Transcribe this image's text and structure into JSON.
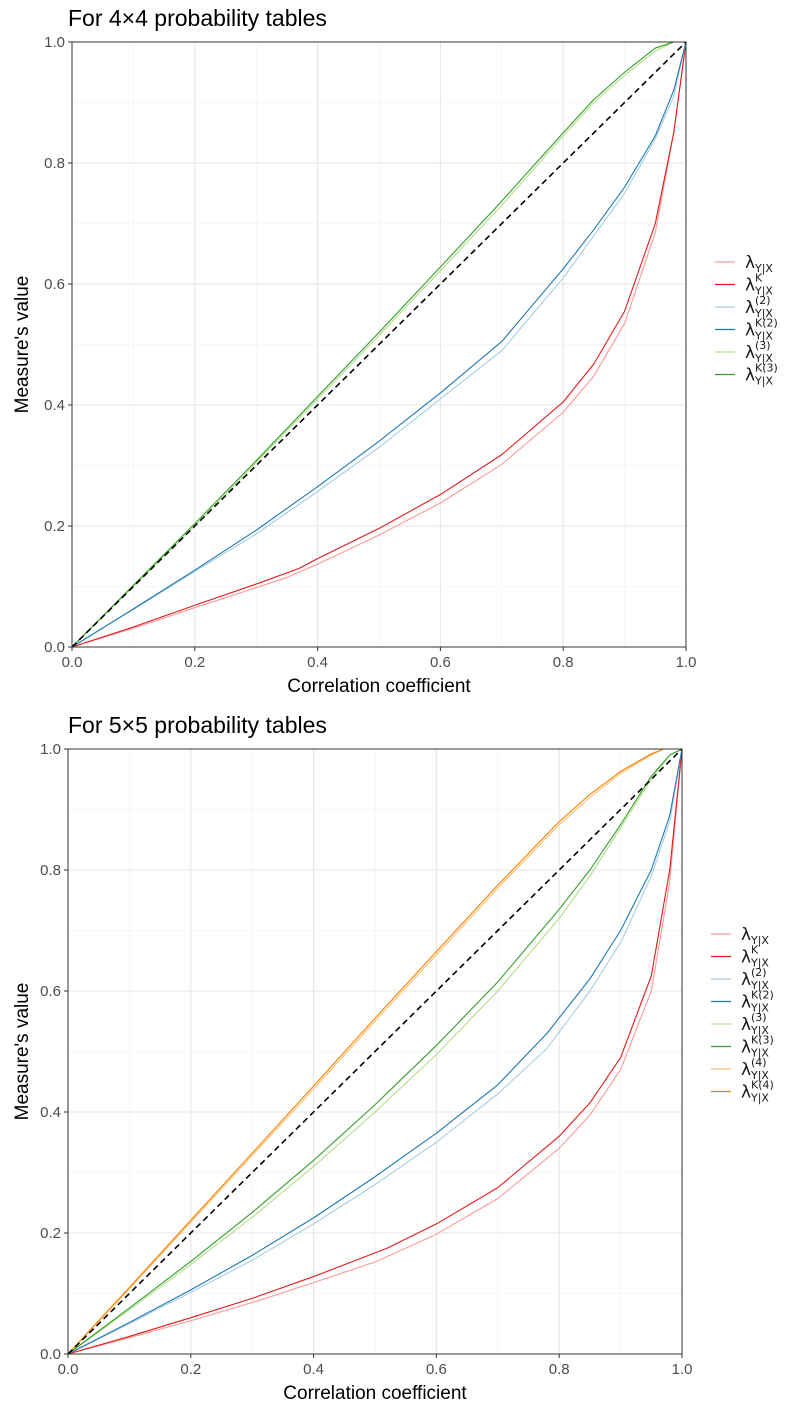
{
  "chart_data": [
    {
      "type": "line",
      "title": "For 4×4 probability tables",
      "xlabel": "Correlation coefficient",
      "ylabel": "Measure's value",
      "xlim": [
        0,
        1
      ],
      "ylim": [
        0,
        1
      ],
      "x_ticks": [
        "0.0",
        "0.2",
        "0.4",
        "0.6",
        "0.8",
        "1.0"
      ],
      "y_ticks": [
        "0.0",
        "0.2",
        "0.4",
        "0.6",
        "0.8",
        "1.0"
      ],
      "grid": true,
      "legend_position": "right",
      "reference_line": {
        "style": "dashed",
        "color": "#000000",
        "points": [
          [
            0,
            0
          ],
          [
            1,
            1
          ]
        ]
      },
      "series": [
        {
          "base": "λ",
          "sub": "Y|X",
          "sup": "",
          "color": "#fb9a99",
          "points": [
            [
              0,
              0
            ],
            [
              0.1,
              0.031
            ],
            [
              0.2,
              0.065
            ],
            [
              0.3,
              0.098
            ],
            [
              0.35,
              0.115
            ],
            [
              0.4,
              0.137
            ],
            [
              0.5,
              0.185
            ],
            [
              0.6,
              0.238
            ],
            [
              0.7,
              0.302
            ],
            [
              0.8,
              0.388
            ],
            [
              0.85,
              0.448
            ],
            [
              0.9,
              0.535
            ],
            [
              0.95,
              0.685
            ],
            [
              0.98,
              0.85
            ],
            [
              1.0,
              1.0
            ]
          ]
        },
        {
          "base": "λ",
          "sub": "Y|X",
          "sup": "K",
          "color": "#e31a1c",
          "points": [
            [
              0,
              0
            ],
            [
              0.1,
              0.033
            ],
            [
              0.2,
              0.069
            ],
            [
              0.3,
              0.104
            ],
            [
              0.37,
              0.13
            ],
            [
              0.4,
              0.146
            ],
            [
              0.5,
              0.196
            ],
            [
              0.6,
              0.252
            ],
            [
              0.7,
              0.318
            ],
            [
              0.8,
              0.405
            ],
            [
              0.85,
              0.468
            ],
            [
              0.9,
              0.555
            ],
            [
              0.95,
              0.7
            ],
            [
              0.98,
              0.85
            ],
            [
              1.0,
              1.0
            ]
          ]
        },
        {
          "base": "λ",
          "sub": "Y|X",
          "sup": "(2)",
          "color": "#a6cee3",
          "points": [
            [
              0,
              0
            ],
            [
              0.1,
              0.062
            ],
            [
              0.2,
              0.125
            ],
            [
              0.3,
              0.187
            ],
            [
              0.4,
              0.257
            ],
            [
              0.5,
              0.33
            ],
            [
              0.6,
              0.41
            ],
            [
              0.7,
              0.49
            ],
            [
              0.75,
              0.55
            ],
            [
              0.8,
              0.61
            ],
            [
              0.85,
              0.68
            ],
            [
              0.9,
              0.75
            ],
            [
              0.95,
              0.84
            ],
            [
              0.98,
              0.91
            ],
            [
              1.0,
              1.0
            ]
          ]
        },
        {
          "base": "λ",
          "sub": "Y|X",
          "sup": "K(2)",
          "color": "#1f78b4",
          "points": [
            [
              0,
              0
            ],
            [
              0.1,
              0.063
            ],
            [
              0.2,
              0.127
            ],
            [
              0.3,
              0.193
            ],
            [
              0.4,
              0.265
            ],
            [
              0.5,
              0.34
            ],
            [
              0.6,
              0.42
            ],
            [
              0.7,
              0.505
            ],
            [
              0.75,
              0.565
            ],
            [
              0.8,
              0.625
            ],
            [
              0.85,
              0.69
            ],
            [
              0.9,
              0.76
            ],
            [
              0.95,
              0.845
            ],
            [
              0.98,
              0.92
            ],
            [
              1.0,
              1.0
            ]
          ]
        },
        {
          "base": "λ",
          "sub": "Y|X",
          "sup": "(3)",
          "color": "#b2df8a",
          "points": [
            [
              0,
              0
            ],
            [
              0.1,
              0.1
            ],
            [
              0.2,
              0.2
            ],
            [
              0.3,
              0.305
            ],
            [
              0.4,
              0.41
            ],
            [
              0.5,
              0.515
            ],
            [
              0.6,
              0.622
            ],
            [
              0.7,
              0.73
            ],
            [
              0.8,
              0.845
            ],
            [
              0.85,
              0.9
            ],
            [
              0.9,
              0.945
            ],
            [
              0.95,
              0.985
            ],
            [
              0.98,
              1.0
            ],
            [
              1.0,
              1.0
            ]
          ]
        },
        {
          "base": "λ",
          "sub": "Y|X",
          "sup": "K(3)",
          "color": "#33a02c",
          "points": [
            [
              0,
              0
            ],
            [
              0.1,
              0.102
            ],
            [
              0.2,
              0.204
            ],
            [
              0.3,
              0.308
            ],
            [
              0.4,
              0.414
            ],
            [
              0.5,
              0.52
            ],
            [
              0.6,
              0.628
            ],
            [
              0.7,
              0.737
            ],
            [
              0.8,
              0.85
            ],
            [
              0.85,
              0.905
            ],
            [
              0.9,
              0.95
            ],
            [
              0.95,
              0.99
            ],
            [
              0.98,
              1.0
            ],
            [
              1.0,
              1.0
            ]
          ]
        }
      ]
    },
    {
      "type": "line",
      "title": "For 5×5 probability tables",
      "xlabel": "Correlation coefficient",
      "ylabel": "Measure's value",
      "xlim": [
        0,
        1
      ],
      "ylim": [
        0,
        1
      ],
      "x_ticks": [
        "0.0",
        "0.2",
        "0.4",
        "0.6",
        "0.8",
        "1.0"
      ],
      "y_ticks": [
        "0.0",
        "0.2",
        "0.4",
        "0.6",
        "0.8",
        "1.0"
      ],
      "grid": true,
      "legend_position": "right",
      "reference_line": {
        "style": "dashed",
        "color": "#000000",
        "points": [
          [
            0,
            0
          ],
          [
            1,
            1
          ]
        ]
      },
      "series": [
        {
          "base": "λ",
          "sub": "Y|X",
          "sup": "",
          "color": "#fb9a99",
          "points": [
            [
              0,
              0
            ],
            [
              0.1,
              0.027
            ],
            [
              0.2,
              0.055
            ],
            [
              0.3,
              0.085
            ],
            [
              0.4,
              0.118
            ],
            [
              0.5,
              0.152
            ],
            [
              0.6,
              0.198
            ],
            [
              0.7,
              0.257
            ],
            [
              0.8,
              0.34
            ],
            [
              0.85,
              0.395
            ],
            [
              0.9,
              0.47
            ],
            [
              0.95,
              0.6
            ],
            [
              0.98,
              0.78
            ],
            [
              1.0,
              1.0
            ]
          ]
        },
        {
          "base": "λ",
          "sub": "Y|X",
          "sup": "K",
          "color": "#e31a1c",
          "points": [
            [
              0,
              0
            ],
            [
              0.1,
              0.029
            ],
            [
              0.2,
              0.06
            ],
            [
              0.3,
              0.092
            ],
            [
              0.4,
              0.128
            ],
            [
              0.52,
              0.175
            ],
            [
              0.6,
              0.215
            ],
            [
              0.7,
              0.275
            ],
            [
              0.8,
              0.36
            ],
            [
              0.85,
              0.415
            ],
            [
              0.9,
              0.49
            ],
            [
              0.95,
              0.625
            ],
            [
              0.98,
              0.8
            ],
            [
              1.0,
              1.0
            ]
          ]
        },
        {
          "base": "λ",
          "sub": "Y|X",
          "sup": "(2)",
          "color": "#a6cee3",
          "points": [
            [
              0,
              0
            ],
            [
              0.1,
              0.05
            ],
            [
              0.2,
              0.102
            ],
            [
              0.3,
              0.155
            ],
            [
              0.4,
              0.215
            ],
            [
              0.5,
              0.28
            ],
            [
              0.6,
              0.35
            ],
            [
              0.7,
              0.43
            ],
            [
              0.78,
              0.505
            ],
            [
              0.85,
              0.6
            ],
            [
              0.9,
              0.68
            ],
            [
              0.95,
              0.79
            ],
            [
              0.98,
              0.88
            ],
            [
              1.0,
              1.0
            ]
          ]
        },
        {
          "base": "λ",
          "sub": "Y|X",
          "sup": "K(2)",
          "color": "#1f78b4",
          "points": [
            [
              0,
              0
            ],
            [
              0.1,
              0.052
            ],
            [
              0.2,
              0.106
            ],
            [
              0.3,
              0.163
            ],
            [
              0.4,
              0.225
            ],
            [
              0.5,
              0.293
            ],
            [
              0.6,
              0.365
            ],
            [
              0.7,
              0.445
            ],
            [
              0.78,
              0.53
            ],
            [
              0.85,
              0.62
            ],
            [
              0.9,
              0.7
            ],
            [
              0.95,
              0.8
            ],
            [
              0.98,
              0.89
            ],
            [
              1.0,
              1.0
            ]
          ]
        },
        {
          "base": "λ",
          "sub": "Y|X",
          "sup": "(3)",
          "color": "#b2df8a",
          "points": [
            [
              0,
              0
            ],
            [
              0.1,
              0.073
            ],
            [
              0.2,
              0.148
            ],
            [
              0.3,
              0.226
            ],
            [
              0.4,
              0.31
            ],
            [
              0.5,
              0.4
            ],
            [
              0.6,
              0.495
            ],
            [
              0.7,
              0.6
            ],
            [
              0.8,
              0.72
            ],
            [
              0.85,
              0.79
            ],
            [
              0.9,
              0.87
            ],
            [
              0.95,
              0.95
            ],
            [
              0.98,
              0.99
            ],
            [
              1.0,
              1.0
            ]
          ]
        },
        {
          "base": "λ",
          "sub": "Y|X",
          "sup": "K(3)",
          "color": "#33a02c",
          "points": [
            [
              0,
              0
            ],
            [
              0.1,
              0.076
            ],
            [
              0.2,
              0.153
            ],
            [
              0.3,
              0.234
            ],
            [
              0.4,
              0.32
            ],
            [
              0.5,
              0.412
            ],
            [
              0.6,
              0.51
            ],
            [
              0.7,
              0.615
            ],
            [
              0.8,
              0.735
            ],
            [
              0.85,
              0.8
            ],
            [
              0.9,
              0.875
            ],
            [
              0.95,
              0.955
            ],
            [
              0.98,
              0.99
            ],
            [
              1.0,
              1.0
            ]
          ]
        },
        {
          "base": "λ",
          "sub": "Y|X",
          "sup": "(4)",
          "color": "#fdbf6f",
          "points": [
            [
              0,
              0
            ],
            [
              0.1,
              0.108
            ],
            [
              0.2,
              0.218
            ],
            [
              0.3,
              0.328
            ],
            [
              0.4,
              0.438
            ],
            [
              0.5,
              0.55
            ],
            [
              0.6,
              0.66
            ],
            [
              0.7,
              0.77
            ],
            [
              0.8,
              0.875
            ],
            [
              0.85,
              0.92
            ],
            [
              0.9,
              0.96
            ],
            [
              0.95,
              0.99
            ],
            [
              0.97,
              1.0
            ],
            [
              1.0,
              1.0
            ]
          ]
        },
        {
          "base": "λ",
          "sub": "Y|X",
          "sup": "K(4)",
          "color": "#ff7f00",
          "points": [
            [
              0,
              0
            ],
            [
              0.1,
              0.11
            ],
            [
              0.2,
              0.221
            ],
            [
              0.3,
              0.332
            ],
            [
              0.4,
              0.443
            ],
            [
              0.5,
              0.555
            ],
            [
              0.6,
              0.665
            ],
            [
              0.7,
              0.775
            ],
            [
              0.8,
              0.88
            ],
            [
              0.85,
              0.925
            ],
            [
              0.9,
              0.963
            ],
            [
              0.95,
              0.992
            ],
            [
              0.97,
              1.0
            ],
            [
              1.0,
              1.0
            ]
          ]
        }
      ]
    }
  ]
}
